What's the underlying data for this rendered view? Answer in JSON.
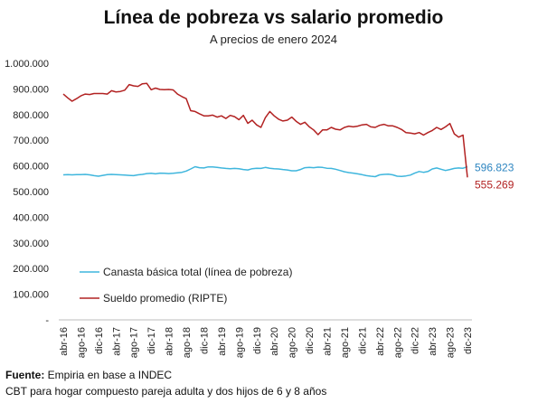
{
  "title": "Línea de pobreza vs salario promedio",
  "subtitle": "A precios de enero 2024",
  "footer": {
    "source_label": "Fuente:",
    "source_text": " Empiria en base a INDEC",
    "note": "CBT para hogar compuesto pareja adulta y dos hijos de 6 y 8 años"
  },
  "chart_data": {
    "type": "line",
    "title": "Línea de pobreza vs salario promedio",
    "subtitle": "A precios de enero 2024",
    "ylim": [
      0,
      1000000
    ],
    "y_ticks": [
      0,
      100000,
      200000,
      300000,
      400000,
      500000,
      600000,
      700000,
      800000,
      900000,
      1000000
    ],
    "y_tick_labels": [
      "-",
      "100.000",
      "200.000",
      "300.000",
      "400.000",
      "500.000",
      "600.000",
      "700.000",
      "800.000",
      "900.000",
      "1.000.000"
    ],
    "x_tick_labels": [
      "abr-16",
      "ago-16",
      "dic-16",
      "abr-17",
      "ago-17",
      "dic-17",
      "abr-18",
      "ago-18",
      "dic-18",
      "abr-19",
      "ago-19",
      "dic-19",
      "abr-20",
      "ago-20",
      "dic-20",
      "abr-21",
      "ago-21",
      "dic-21",
      "abr-22",
      "ago-22",
      "dic-22",
      "abr-23",
      "ago-23",
      "dic-23"
    ],
    "x_start": "abr-16",
    "x_end": "dic-23",
    "grid": false,
    "legend_position": "bottom-left",
    "series": [
      {
        "name": "Canasta básica total (línea de pobreza)",
        "color": "#3fb6dd",
        "end_label": "596.823",
        "end_label_color": "#2e86c1",
        "values": [
          565000,
          566000,
          565000,
          566000,
          566000,
          567000,
          565000,
          562000,
          560000,
          563000,
          566000,
          567000,
          566000,
          565000,
          564000,
          563000,
          562000,
          565000,
          567000,
          570000,
          571000,
          569000,
          572000,
          571000,
          570000,
          571000,
          573000,
          575000,
          580000,
          588000,
          597000,
          593000,
          592000,
          596000,
          596000,
          594000,
          592000,
          590000,
          589000,
          590000,
          589000,
          586000,
          584000,
          589000,
          591000,
          590000,
          594000,
          591000,
          589000,
          588000,
          586000,
          584000,
          581000,
          581000,
          586000,
          593000,
          594000,
          593000,
          595000,
          594000,
          591000,
          590000,
          587000,
          582000,
          577000,
          574000,
          572000,
          569000,
          566000,
          562000,
          560000,
          558000,
          565000,
          567000,
          568000,
          565000,
          560000,
          559000,
          561000,
          564000,
          572000,
          578000,
          575000,
          578000,
          588000,
          592000,
          587000,
          582000,
          586000,
          590000,
          592000,
          591000,
          596823
        ]
      },
      {
        "name": "Sueldo promedio (RIPTE)",
        "color": "#b22222",
        "end_label": "555.269",
        "end_label_color": "#b22222",
        "values": [
          880000,
          865000,
          852000,
          862000,
          873000,
          880000,
          878000,
          882000,
          882000,
          882000,
          880000,
          893000,
          888000,
          890000,
          895000,
          917000,
          912000,
          910000,
          920000,
          922000,
          897000,
          903000,
          898000,
          897000,
          898000,
          896000,
          880000,
          870000,
          862000,
          815000,
          812000,
          803000,
          795000,
          795000,
          798000,
          790000,
          795000,
          785000,
          797000,
          792000,
          780000,
          797000,
          766000,
          778000,
          760000,
          750000,
          788000,
          812000,
          795000,
          782000,
          775000,
          778000,
          790000,
          774000,
          762000,
          770000,
          752000,
          740000,
          722000,
          740000,
          740000,
          750000,
          743000,
          740000,
          750000,
          755000,
          752000,
          755000,
          760000,
          762000,
          752000,
          750000,
          758000,
          762000,
          756000,
          756000,
          750000,
          742000,
          730000,
          728000,
          725000,
          730000,
          720000,
          730000,
          738000,
          750000,
          742000,
          752000,
          765000,
          725000,
          712000,
          720000,
          555269
        ]
      }
    ]
  }
}
